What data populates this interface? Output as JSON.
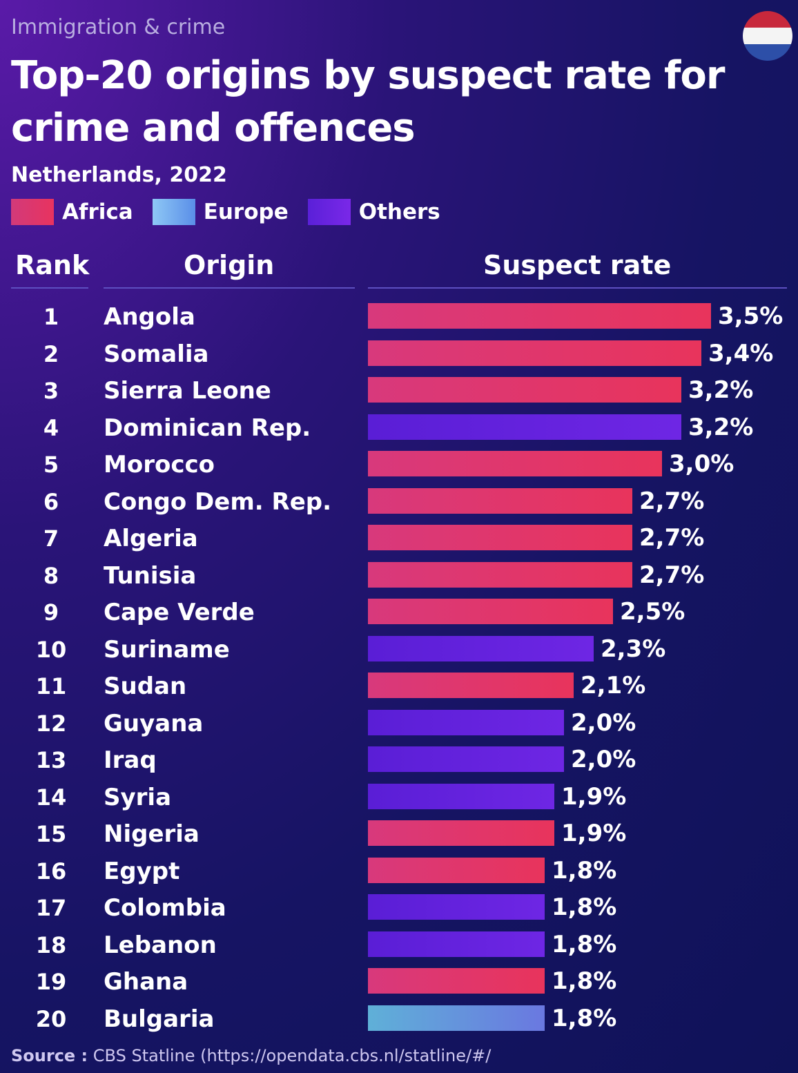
{
  "kicker": "Immigration & crime",
  "title": "Top-20 origins by suspect rate for crime and offences",
  "subtitle": "Netherlands, 2022",
  "legend": [
    {
      "label": "Africa",
      "color": "#e23a6e"
    },
    {
      "label": "Europe",
      "color": "#6fa8ee"
    },
    {
      "label": "Others",
      "color": "#6a22e0"
    }
  ],
  "headers": {
    "rank": "Rank",
    "origin": "Origin",
    "rate": "Suspect rate"
  },
  "source": {
    "label": "Source :",
    "text": "CBS Statline (https://opendata.cbs.nl/statline/#/"
  },
  "chart_data": {
    "type": "bar",
    "title": "Top-20 origins by suspect rate for crime and offences",
    "subtitle": "Netherlands, 2022",
    "categories": [
      "Angola",
      "Somalia",
      "Sierra Leone",
      "Dominican Rep.",
      "Morocco",
      "Congo Dem. Rep.",
      "Algeria",
      "Tunisia",
      "Cape Verde",
      "Suriname",
      "Sudan",
      "Guyana",
      "Iraq",
      "Syria",
      "Nigeria",
      "Egypt",
      "Colombia",
      "Lebanon",
      "Ghana",
      "Bulgaria"
    ],
    "ranks": [
      "1",
      "2",
      "3",
      "4",
      "5",
      "6",
      "7",
      "8",
      "9",
      "10",
      "11",
      "12",
      "13",
      "14",
      "15",
      "16",
      "17",
      "18",
      "19",
      "20"
    ],
    "values": [
      3.5,
      3.4,
      3.2,
      3.2,
      3.0,
      2.7,
      2.7,
      2.7,
      2.5,
      2.3,
      2.1,
      2.0,
      2.0,
      1.9,
      1.9,
      1.8,
      1.8,
      1.8,
      1.8,
      1.8
    ],
    "labels": [
      "3,5%",
      "3,4%",
      "3,2%",
      "3,2%",
      "3,0%",
      "2,7%",
      "2,7%",
      "2,7%",
      "2,5%",
      "2,3%",
      "2,1%",
      "2,0%",
      "2,0%",
      "1,9%",
      "1,9%",
      "1,8%",
      "1,8%",
      "1,8%",
      "1,8%",
      "1,8%"
    ],
    "groups": [
      "Africa",
      "Africa",
      "Africa",
      "Others",
      "Africa",
      "Africa",
      "Africa",
      "Africa",
      "Africa",
      "Others",
      "Africa",
      "Others",
      "Others",
      "Others",
      "Africa",
      "Africa",
      "Others",
      "Others",
      "Africa",
      "Europe"
    ],
    "xlim": [
      0,
      3.5
    ]
  }
}
